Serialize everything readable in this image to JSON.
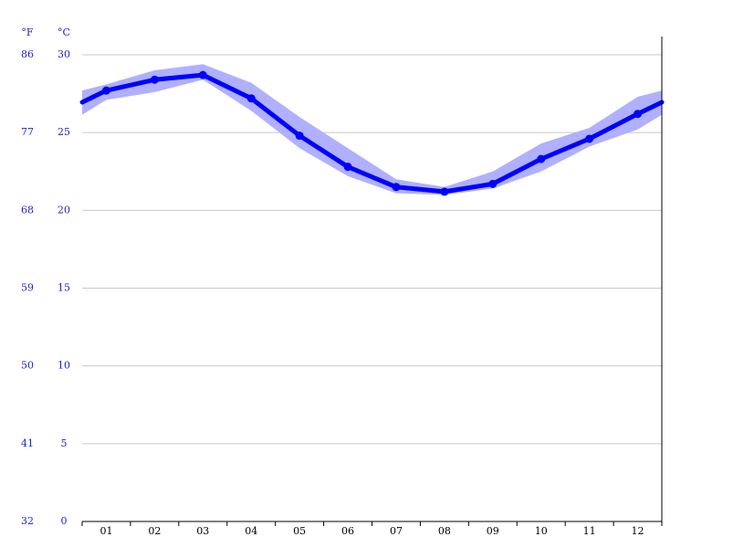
{
  "chart_data": {
    "type": "line",
    "y_unit_label": "°C",
    "y2_unit_label": "°F",
    "categories": [
      "01",
      "02",
      "03",
      "04",
      "05",
      "06",
      "07",
      "08",
      "09",
      "10",
      "11",
      "12"
    ],
    "series": [
      {
        "color": "#0000ff",
        "values": [
          27.7,
          28.4,
          28.7,
          27.2,
          24.8,
          22.8,
          21.5,
          21.2,
          21.7,
          23.3,
          24.6,
          26.2
        ]
      }
    ],
    "band": {
      "color": "#b0b0ff",
      "low": [
        27.1,
        27.6,
        28.4,
        26.4,
        24.0,
        22.2,
        21.1,
        21.0,
        21.4,
        22.5,
        24.1,
        25.2
      ],
      "high": [
        28.1,
        29.0,
        29.4,
        28.2,
        26.0,
        24.0,
        22.0,
        21.5,
        22.5,
        24.3,
        25.3,
        27.3
      ]
    },
    "ylim": [
      0,
      30
    ],
    "yticks": [
      0,
      5,
      10,
      15,
      20,
      25,
      30
    ],
    "y2lim": [
      32,
      86
    ],
    "y2ticks": [
      32,
      41,
      50,
      59,
      68,
      77,
      86
    ],
    "grid": true
  }
}
